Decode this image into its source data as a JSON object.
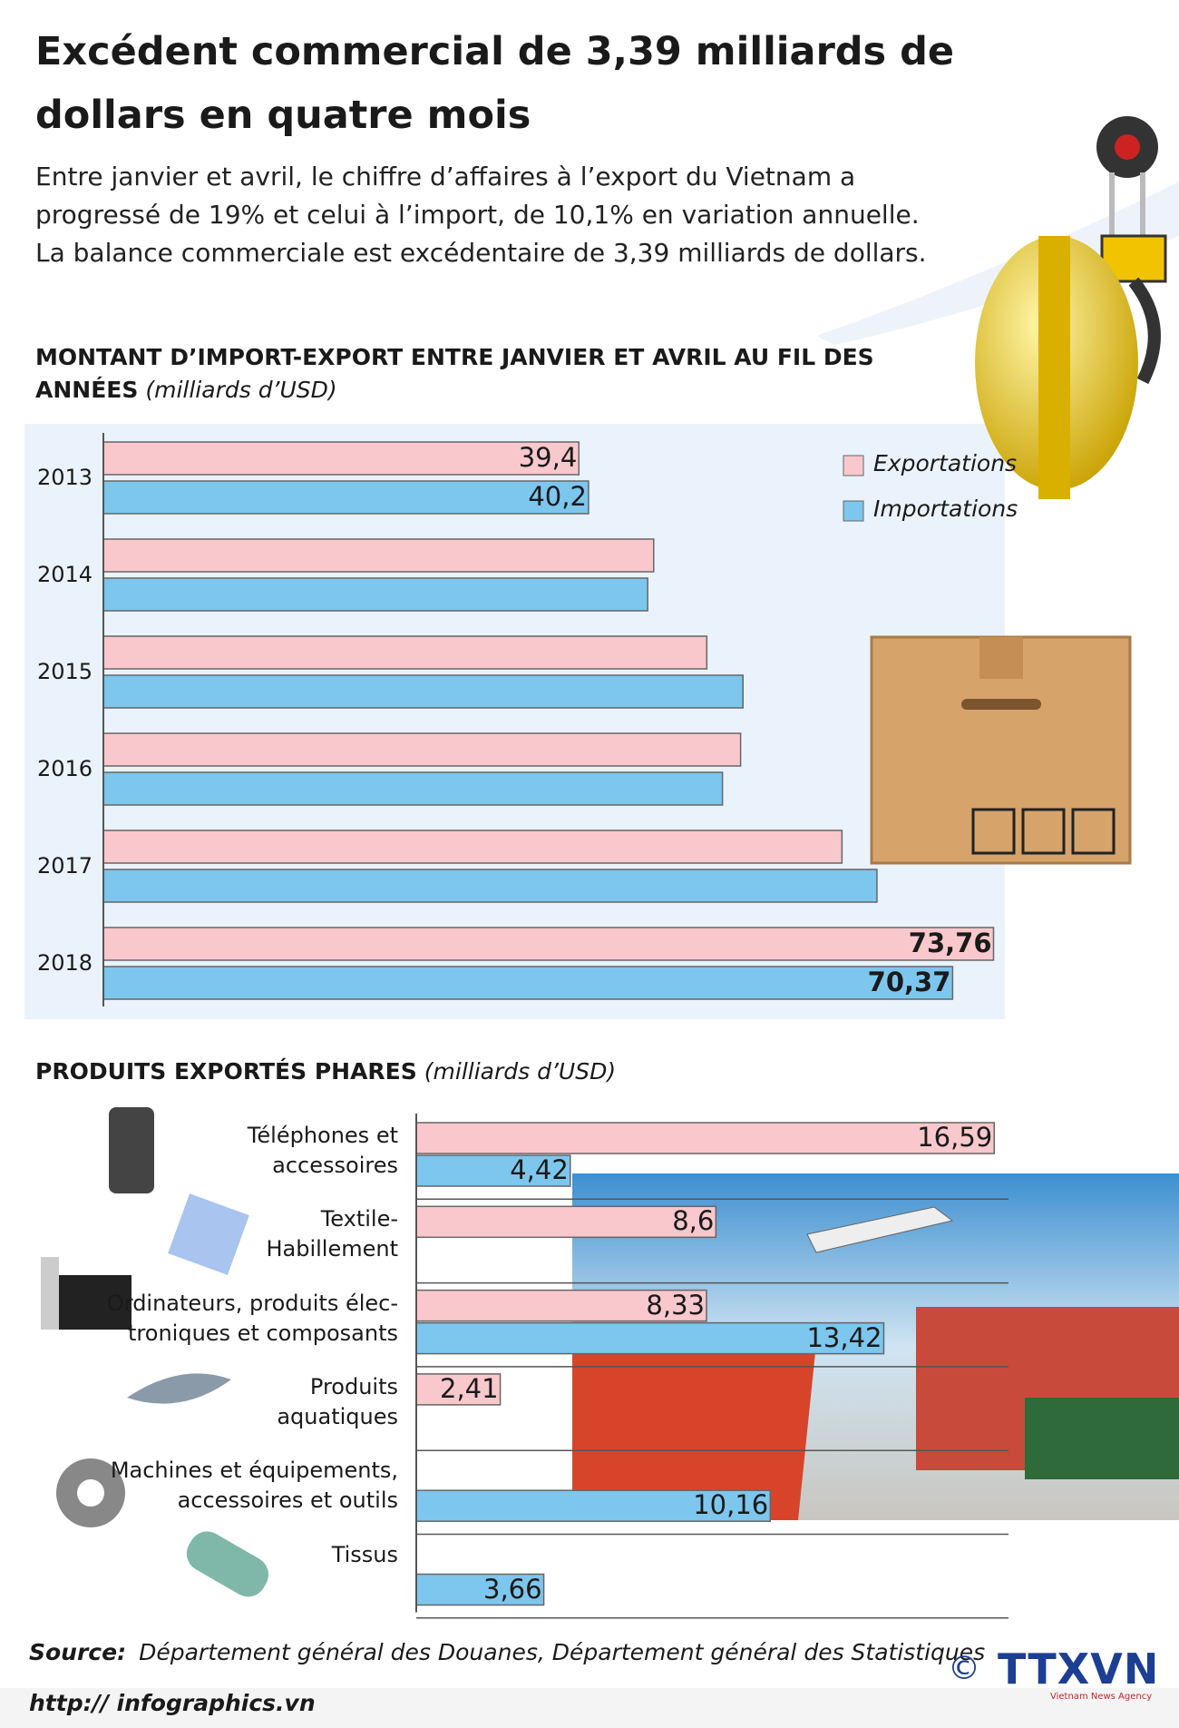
{
  "header": {
    "title": "Excédent commercial de 3,39 milliards de\ndollars en quatre mois",
    "intro": "Entre janvier et avril, le chiffre d’affaires à l’export du Vietnam a\nprogressé de 19% et celui à l’import, de 10,1% en variation annuelle.\nLa balance commerciale est excédentaire de 3,39 milliards de dollars."
  },
  "chart_data": [
    {
      "type": "bar",
      "title": "MONTANT D’IMPORT-EXPORT ENTRE JANVIER ET AVRIL AU FIL DES\nANNÉES",
      "unit": "(milliards d’USD)",
      "categories": [
        "2013",
        "2014",
        "2015",
        "2016",
        "2017",
        "2018"
      ],
      "series": [
        {
          "name": "Exportations",
          "color": "#f9c8cc",
          "values": [
            39.4,
            45.6,
            50.0,
            52.8,
            61.2,
            73.76
          ],
          "value_labels": [
            "39,4",
            null,
            null,
            null,
            null,
            "73,76"
          ]
        },
        {
          "name": "Importations",
          "color": "#7dc6ee",
          "values": [
            40.2,
            45.1,
            53.0,
            51.3,
            64.1,
            70.37
          ],
          "value_labels": [
            "40,2",
            null,
            null,
            null,
            null,
            "70,37"
          ]
        }
      ],
      "xlim": [
        0,
        75
      ]
    },
    {
      "type": "bar",
      "title": "PRODUITS EXPORTÉS PHARES",
      "unit": "(milliards d’USD)",
      "categories": [
        "Téléphones et\naccessoires",
        "Textile-\nHabillement",
        "Ordinateurs, produits élec-\ntroniques et composants",
        "Produits\naquatiques",
        "Machines et équipements,\naccessoires et outils",
        "Tissus"
      ],
      "series": [
        {
          "color": "#f9c8cc",
          "values": [
            16.59,
            8.6,
            8.33,
            2.41,
            null,
            null
          ],
          "value_labels": [
            "16,59",
            "8,6",
            "8,33",
            "2,41",
            null,
            null
          ]
        },
        {
          "color": "#7dc6ee",
          "values": [
            4.42,
            null,
            13.42,
            null,
            10.16,
            3.66
          ],
          "value_labels": [
            "4,42",
            null,
            "13,42",
            null,
            "10,16",
            "3,66"
          ]
        }
      ],
      "xlim": [
        0,
        17
      ]
    }
  ],
  "footer": {
    "source_label": "Source:",
    "source": "Département général des Douanes, Département général des Statistiques",
    "url": "http:// infographics.vn",
    "copyright": "©",
    "logo": "TTXVN",
    "agency": "Vietnam News Agency"
  }
}
